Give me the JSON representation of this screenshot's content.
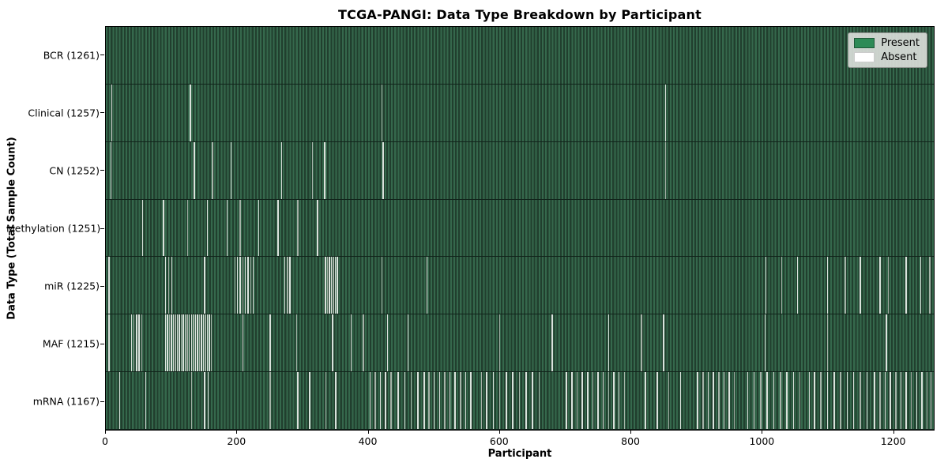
{
  "title": "TCGA-PANGI: Data Type Breakdown by Participant",
  "xlabel": "Participant",
  "ylabel": "Data Type (Total Sample Count)",
  "legend": {
    "present_label": "Present",
    "absent_label": "Absent"
  },
  "colors": {
    "present": "#2e8b57",
    "present_stripe_light": "#35684c",
    "present_stripe_dark": "#213f2e",
    "absent": "#ffffff",
    "legend_bg": "#d9ddd9",
    "spine": "#000000"
  },
  "chart_data": {
    "type": "heatmap",
    "title": "TCGA-PANGI: Data Type Breakdown by Participant",
    "xlabel": "Participant",
    "ylabel": "Data Type (Total Sample Count)",
    "x_ticks": [
      0,
      200,
      400,
      600,
      800,
      1000,
      1200
    ],
    "x_axis_max": 1263,
    "total_participants": 1261,
    "grid": false,
    "legend_position": "upper right",
    "legend_entries": [
      {
        "label": "Present",
        "color": "#2e8b57"
      },
      {
        "label": "Absent",
        "color": "#ffffff"
      }
    ],
    "rows": [
      {
        "data_type": "BCR",
        "label": "BCR (1261)",
        "present_count": 1261,
        "absent_count": 0,
        "absent_participants": []
      },
      {
        "data_type": "Clinical",
        "label": "Clinical (1257)",
        "present_count": 1257,
        "absent_count": 4,
        "absent_participants": [
          8,
          128,
          420,
          853
        ]
      },
      {
        "data_type": "CN",
        "label": "CN (1252)",
        "present_count": 1252,
        "absent_count": 9,
        "absent_participants": [
          7,
          134,
          162,
          190,
          267,
          314,
          333,
          422,
          853
        ]
      },
      {
        "data_type": "Methylation",
        "label": "Methylation (1251)",
        "present_count": 1251,
        "absent_count": 10,
        "absent_participants": [
          55,
          87,
          124,
          154,
          184,
          204,
          232,
          262,
          292,
          322
        ]
      },
      {
        "data_type": "miR",
        "label": "miR (1225)",
        "present_count": 1225,
        "absent_count": 36,
        "absent_participants": [
          4,
          90,
          95,
          100,
          150,
          196,
          200,
          204,
          208,
          212,
          216,
          220,
          224,
          272,
          276,
          280,
          334,
          337,
          340,
          343,
          346,
          349,
          352,
          420,
          489,
          1006,
          1030,
          1054,
          1100,
          1127,
          1150,
          1180,
          1193,
          1220,
          1242,
          1256
        ]
      },
      {
        "data_type": "MAF",
        "label": "MAF (1215)",
        "present_count": 1215,
        "absent_count": 46,
        "absent_participants": [
          4,
          38,
          42,
          46,
          50,
          54,
          90,
          93,
          96,
          99,
          102,
          105,
          108,
          111,
          114,
          117,
          120,
          123,
          126,
          130,
          133,
          136,
          139,
          142,
          145,
          148,
          151,
          154,
          157,
          160,
          208,
          250,
          290,
          345,
          373,
          392,
          429,
          460,
          600,
          680,
          766,
          816,
          850,
          1005,
          1100,
          1190
        ]
      },
      {
        "data_type": "mRNA",
        "label": "mRNA (1167)",
        "present_count": 1167,
        "absent_count": 94,
        "absent_participants": [
          20,
          60,
          130,
          150,
          155,
          250,
          292,
          310,
          335,
          350,
          402,
          410,
          418,
          426,
          434,
          445,
          455,
          465,
          475,
          485,
          492,
          500,
          508,
          516,
          524,
          532,
          540,
          548,
          556,
          572,
          580,
          590,
          600,
          610,
          620,
          630,
          640,
          650,
          660,
          702,
          710,
          718,
          726,
          734,
          742,
          750,
          758,
          766,
          774,
          782,
          790,
          822,
          840,
          858,
          876,
          902,
          910,
          918,
          926,
          934,
          942,
          950,
          958,
          978,
          988,
          998,
          1008,
          1018,
          1028,
          1038,
          1048,
          1058,
          1072,
          1080,
          1090,
          1100,
          1110,
          1120,
          1130,
          1140,
          1150,
          1160,
          1172,
          1180,
          1188,
          1196,
          1204,
          1212,
          1220,
          1228,
          1236,
          1244,
          1252,
          1258
        ]
      }
    ]
  }
}
